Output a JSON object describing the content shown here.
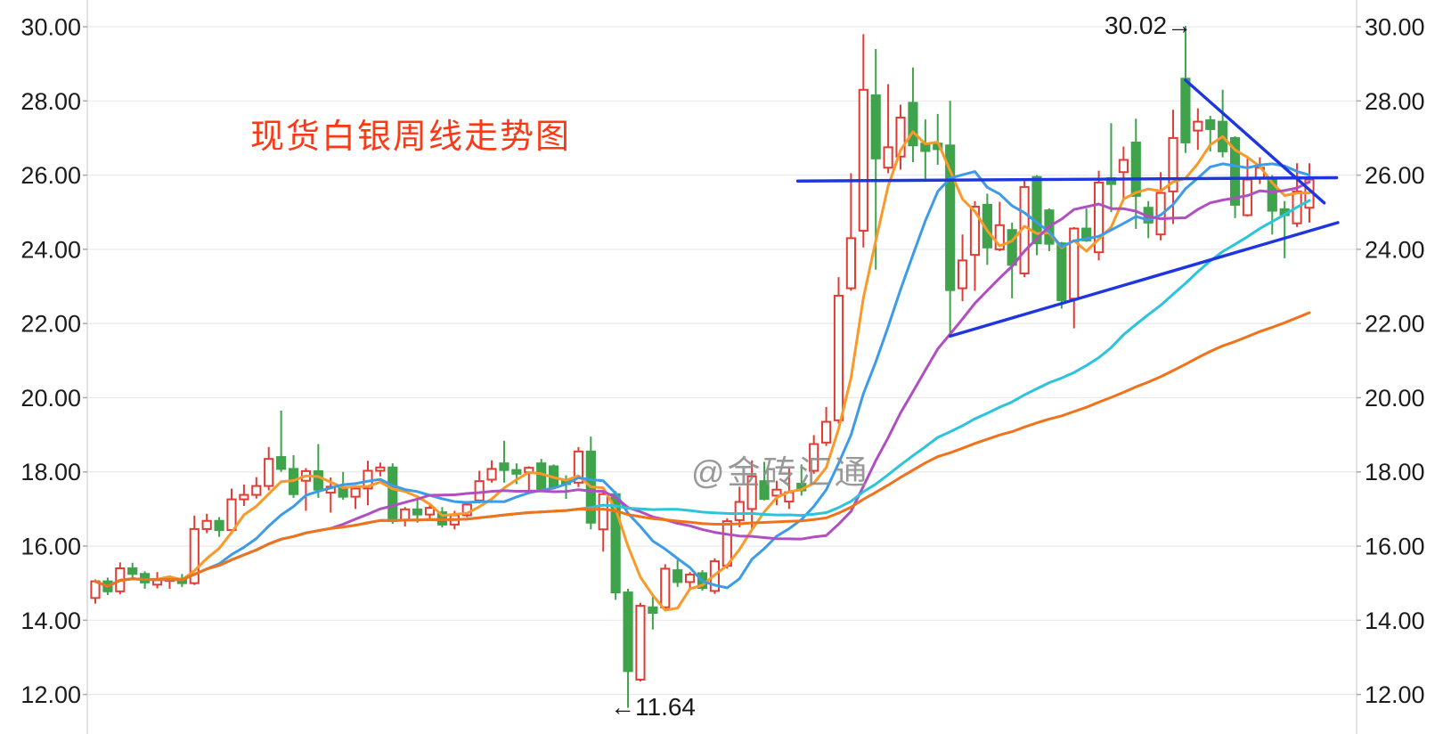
{
  "title": {
    "text": "现货白银周线走势图",
    "color": "#fa3a16"
  },
  "watermark": {
    "text": "@金砖汇通",
    "color": "#8e8e8e"
  },
  "annotations": {
    "high_label": "30.02→",
    "high_value": 30.02,
    "low_label": "←11.64",
    "low_value": 11.64
  },
  "axis": {
    "tick_labels": [
      "30.00",
      "28.00",
      "26.00",
      "24.00",
      "22.00",
      "20.00",
      "18.00",
      "16.00",
      "14.00",
      "12.00"
    ],
    "tick_values": [
      30,
      28,
      26,
      24,
      22,
      20,
      18,
      16,
      14,
      12
    ],
    "label_color": "#1c1c1c",
    "grid_color": "#e9e9e9",
    "border_color": "#cfcfcf",
    "tick_color": "#aaaaaa"
  },
  "chart_data": {
    "type": "candlestick",
    "title": "现货白银周线走势图",
    "timeframe": "weekly",
    "ylim": [
      10.9,
      30.7
    ],
    "grid": "horizontal-only",
    "up_color": "#e03c34",
    "down_color": "#3fa34c",
    "trendline_color": "#1d36e0",
    "annotated_high": 30.02,
    "annotated_low": 11.64,
    "candles_ohlc": [
      [
        14.6,
        15.1,
        14.45,
        15.05
      ],
      [
        15.05,
        15.15,
        14.68,
        14.78
      ],
      [
        14.78,
        15.56,
        14.7,
        15.4
      ],
      [
        15.4,
        15.55,
        15.15,
        15.25
      ],
      [
        15.25,
        15.32,
        14.85,
        15.02
      ],
      [
        14.96,
        15.3,
        14.86,
        15.08
      ],
      [
        15.08,
        15.2,
        14.85,
        15.12
      ],
      [
        15.12,
        15.25,
        14.9,
        15.0
      ],
      [
        15.0,
        16.82,
        14.95,
        16.46
      ],
      [
        16.46,
        16.87,
        16.35,
        16.68
      ],
      [
        16.68,
        16.78,
        16.25,
        16.43
      ],
      [
        16.43,
        17.55,
        16.33,
        17.26
      ],
      [
        17.26,
        17.66,
        17.08,
        17.38
      ],
      [
        17.38,
        17.86,
        17.28,
        17.62
      ],
      [
        17.62,
        18.67,
        17.5,
        18.35
      ],
      [
        18.4,
        19.65,
        18.0,
        18.08
      ],
      [
        18.08,
        18.45,
        17.3,
        17.4
      ],
      [
        17.76,
        18.1,
        16.95,
        18.02
      ],
      [
        18.02,
        18.75,
        17.3,
        17.52
      ],
      [
        17.44,
        17.85,
        16.9,
        17.6
      ],
      [
        17.56,
        18.0,
        17.25,
        17.33
      ],
      [
        17.33,
        17.6,
        17.0,
        17.55
      ],
      [
        17.55,
        18.3,
        17.1,
        18.03
      ],
      [
        18.03,
        18.25,
        17.88,
        18.12
      ],
      [
        18.12,
        18.23,
        16.6,
        16.67
      ],
      [
        16.7,
        17.05,
        16.53,
        16.99
      ],
      [
        16.99,
        17.32,
        16.63,
        16.85
      ],
      [
        16.85,
        17.1,
        16.68,
        17.03
      ],
      [
        16.91,
        17.05,
        16.5,
        16.58
      ],
      [
        16.58,
        16.95,
        16.45,
        16.83
      ],
      [
        16.83,
        17.18,
        16.78,
        17.12
      ],
      [
        17.23,
        18.03,
        17.15,
        17.75
      ],
      [
        17.79,
        18.31,
        17.71,
        18.08
      ],
      [
        18.23,
        18.84,
        17.71,
        18.05
      ],
      [
        18.05,
        18.23,
        17.67,
        17.95
      ],
      [
        17.99,
        18.15,
        17.45,
        18.11
      ],
      [
        18.23,
        18.35,
        17.52,
        17.55
      ],
      [
        18.15,
        18.2,
        17.55,
        17.59
      ],
      [
        17.79,
        17.91,
        17.27,
        17.67
      ],
      [
        17.71,
        18.67,
        17.59,
        18.55
      ],
      [
        18.55,
        18.95,
        16.45,
        16.63
      ],
      [
        16.45,
        17.45,
        15.85,
        17.4
      ],
      [
        17.4,
        17.48,
        14.55,
        14.75
      ],
      [
        14.75,
        14.85,
        11.64,
        12.63
      ],
      [
        12.4,
        14.47,
        12.35,
        14.39
      ],
      [
        14.35,
        14.63,
        13.75,
        14.2
      ],
      [
        14.35,
        15.51,
        14.31,
        15.39
      ],
      [
        15.35,
        15.67,
        14.9,
        15.03
      ],
      [
        15.03,
        15.3,
        14.83,
        15.23
      ],
      [
        15.27,
        15.35,
        14.8,
        14.87
      ],
      [
        14.79,
        15.67,
        14.71,
        15.59
      ],
      [
        15.47,
        16.75,
        15.39,
        16.67
      ],
      [
        16.7,
        17.6,
        16.51,
        17.19
      ],
      [
        17.0,
        18.31,
        16.47,
        17.88
      ],
      [
        17.75,
        18.27,
        17.23,
        17.27
      ],
      [
        17.36,
        17.76,
        17.1,
        17.52
      ],
      [
        17.2,
        18.1,
        17.0,
        17.45
      ],
      [
        17.68,
        18.2,
        17.36,
        17.5
      ],
      [
        18.03,
        18.99,
        17.95,
        18.75
      ],
      [
        18.79,
        19.75,
        18.7,
        19.35
      ],
      [
        19.39,
        23.25,
        19.3,
        22.75
      ],
      [
        22.95,
        26.05,
        22.88,
        24.3
      ],
      [
        24.5,
        29.8,
        24.05,
        28.3
      ],
      [
        28.15,
        29.4,
        23.45,
        26.45
      ],
      [
        26.2,
        28.45,
        26.05,
        26.75
      ],
      [
        26.5,
        27.9,
        26.15,
        27.55
      ],
      [
        27.95,
        28.9,
        26.35,
        26.8
      ],
      [
        26.85,
        27.5,
        25.9,
        26.65
      ],
      [
        26.85,
        27.65,
        26.28,
        26.7
      ],
      [
        26.8,
        28.0,
        21.65,
        22.9
      ],
      [
        22.95,
        24.4,
        22.6,
        23.7
      ],
      [
        23.85,
        25.3,
        22.88,
        25.15
      ],
      [
        25.2,
        25.5,
        23.58,
        24.05
      ],
      [
        24.0,
        25.28,
        23.95,
        24.65
      ],
      [
        24.52,
        24.72,
        22.68,
        23.58
      ],
      [
        23.35,
        25.84,
        23.25,
        25.68
      ],
      [
        25.95,
        26.0,
        23.84,
        24.16
      ],
      [
        25.05,
        25.1,
        23.95,
        24.15
      ],
      [
        24.16,
        24.2,
        22.4,
        22.63
      ],
      [
        22.67,
        24.6,
        21.87,
        24.56
      ],
      [
        24.56,
        25.1,
        24.2,
        24.24
      ],
      [
        23.92,
        26.12,
        23.7,
        25.8
      ],
      [
        25.92,
        27.4,
        25.0,
        25.76
      ],
      [
        26.08,
        26.77,
        25.35,
        26.41
      ],
      [
        26.88,
        27.52,
        24.55,
        25.44
      ],
      [
        25.12,
        25.3,
        24.3,
        24.72
      ],
      [
        24.4,
        26.08,
        24.24,
        25.52
      ],
      [
        25.56,
        27.76,
        24.68,
        27.0
      ],
      [
        28.6,
        30.02,
        26.6,
        26.88
      ],
      [
        27.2,
        27.8,
        26.68,
        27.44
      ],
      [
        27.48,
        27.6,
        26.64,
        27.24
      ],
      [
        27.44,
        28.3,
        26.48,
        26.64
      ],
      [
        27.0,
        27.05,
        24.84,
        25.2
      ],
      [
        24.92,
        26.44,
        24.88,
        25.88
      ],
      [
        25.92,
        26.48,
        25.76,
        26.2
      ],
      [
        25.88,
        26.0,
        24.4,
        25.04
      ],
      [
        25.08,
        25.3,
        23.76,
        24.92
      ],
      [
        24.7,
        26.32,
        24.6,
        25.56
      ],
      [
        25.12,
        26.32,
        24.72,
        25.88
      ]
    ],
    "moving_averages": [
      {
        "name": "MA5",
        "period": 5,
        "color": "#f9992a"
      },
      {
        "name": "MA10",
        "period": 10,
        "color": "#3d9be8"
      },
      {
        "name": "MA20",
        "period": 20,
        "color": "#b04fc0"
      },
      {
        "name": "MA40",
        "period": 40,
        "color": "#2bc4dc"
      },
      {
        "name": "MA60",
        "period": 60,
        "color": "#f0731b"
      }
    ],
    "trendlines": [
      {
        "name": "horizontal-resistance",
        "x1_index": 57.7,
        "y1": 25.84,
        "x2_index": 101.2,
        "y2": 25.93
      },
      {
        "name": "ascending-support",
        "x1_index": 70.0,
        "y1": 21.66,
        "x2_index": 101.3,
        "y2": 24.72
      },
      {
        "name": "descending-resistance",
        "x1_index": 89.0,
        "y1": 28.56,
        "x2_index": 100.2,
        "y2": 25.25
      }
    ],
    "legend": "none"
  }
}
